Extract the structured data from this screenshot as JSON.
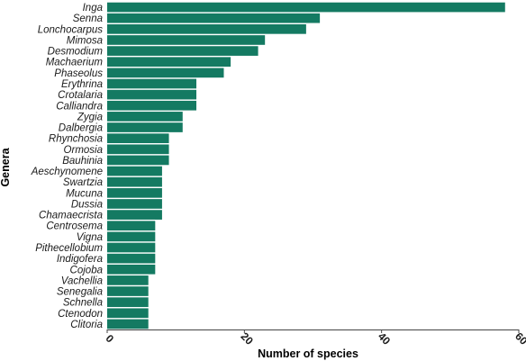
{
  "chart_data": {
    "type": "bar",
    "orientation": "horizontal",
    "title": "",
    "xlabel": "Number of species",
    "ylabel": "Genera",
    "xlim": [
      0,
      60
    ],
    "xticks": [
      0,
      20,
      40,
      60
    ],
    "grid": false,
    "legend": "none",
    "bar_color": "#147a62",
    "categories": [
      "Inga",
      "Senna",
      "Lonchocarpus",
      "Mimosa",
      "Desmodium",
      "Machaerium",
      "Phaseolus",
      "Erythrina",
      "Crotalaria",
      "Calliandra",
      "Zygia",
      "Dalbergia",
      "Rhynchosia",
      "Ormosia",
      "Bauhinia",
      "Aeschynomene",
      "Swartzia",
      "Mucuna",
      "Dussia",
      "Chamaecrista",
      "Centrosema",
      "Vigna",
      "Pithecellobium",
      "Indigofera",
      "Cojoba",
      "Vachellia",
      "Senegalia",
      "Schnella",
      "Ctenodon",
      "Clitoria"
    ],
    "values": [
      58,
      31,
      29,
      23,
      22,
      18,
      17,
      13,
      13,
      13,
      11,
      11,
      9,
      9,
      9,
      8,
      8,
      8,
      8,
      8,
      7,
      7,
      7,
      7,
      7,
      6,
      6,
      6,
      6,
      6
    ]
  }
}
